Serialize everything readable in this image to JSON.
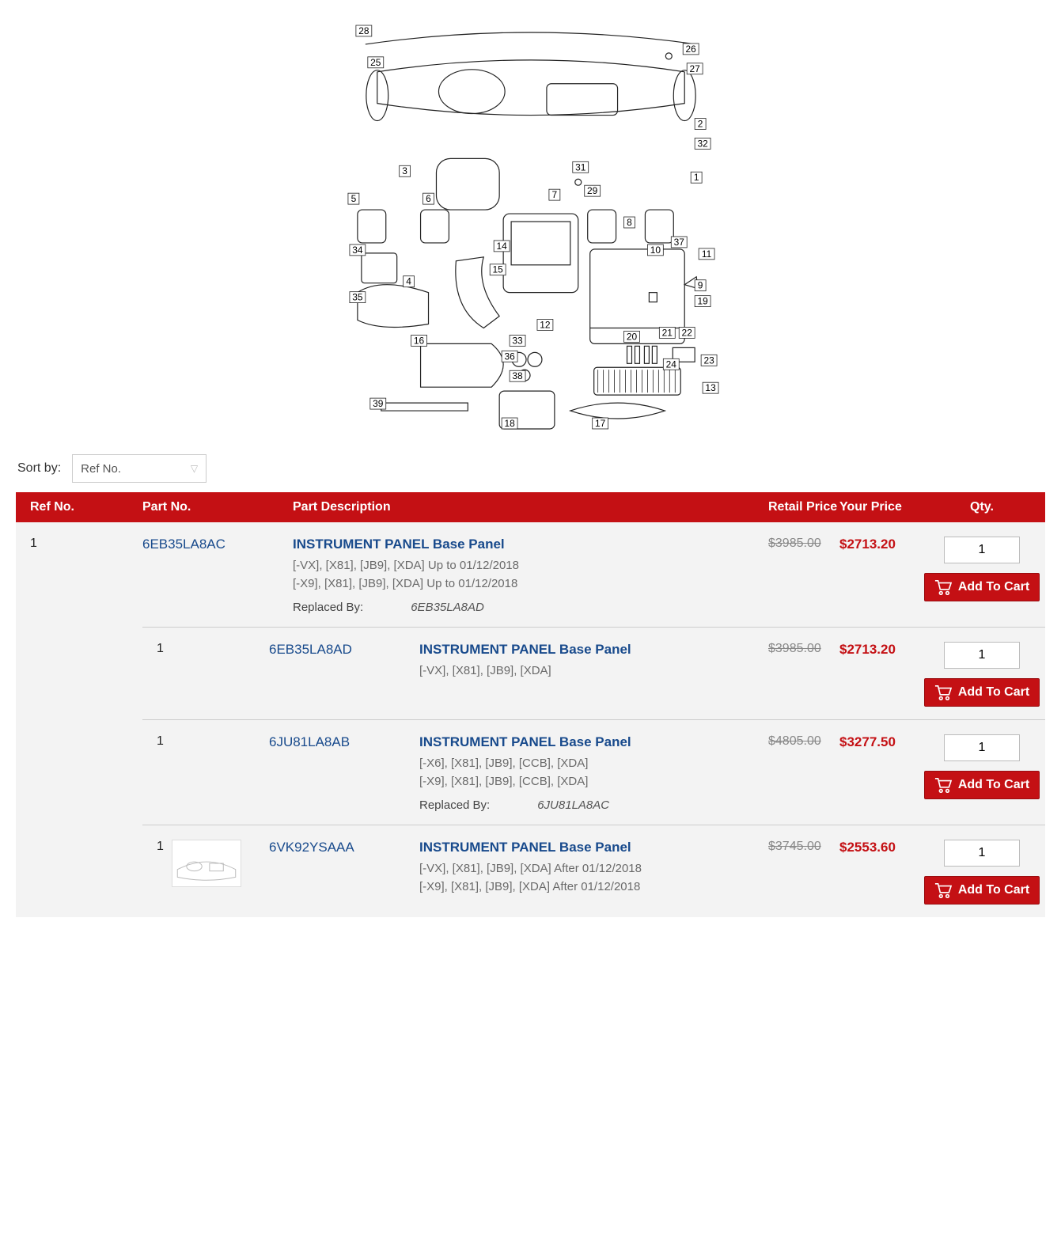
{
  "colors": {
    "header_bg": "#c41014",
    "header_text": "#ffffff",
    "link": "#184a8c",
    "price_highlight": "#c41014",
    "muted": "#888888",
    "row_bg": "#f3f3f3"
  },
  "sort": {
    "label": "Sort by:",
    "selected": "Ref No."
  },
  "table": {
    "headers": {
      "ref": "Ref No.",
      "partno": "Part No.",
      "desc": "Part Description",
      "retail": "Retail Price",
      "your": "Your Price",
      "qty": "Qty."
    }
  },
  "addToCartLabel": "Add To Cart",
  "replacedByLabel": "Replaced By:",
  "parts": [
    {
      "ref": "1",
      "partNo": "6EB35LA8AC",
      "title": "INSTRUMENT PANEL Base Panel",
      "line1": "[-VX], [X81], [JB9], [XDA] Up to 01/12/2018",
      "line2": "[-X9], [X81], [JB9], [XDA] Up to 01/12/2018",
      "replacedBy": "6EB35LA8AD",
      "retail": "$3985.00",
      "your": "$2713.20",
      "qty": "1",
      "thumb": false
    },
    {
      "ref": "1",
      "partNo": "6EB35LA8AD",
      "title": "INSTRUMENT PANEL Base Panel",
      "line1": "[-VX], [X81], [JB9], [XDA]",
      "line2": "",
      "replacedBy": "",
      "retail": "$3985.00",
      "your": "$2713.20",
      "qty": "1",
      "thumb": false
    },
    {
      "ref": "1",
      "partNo": "6JU81LA8AB",
      "title": "INSTRUMENT PANEL Base Panel",
      "line1": "[-X6], [X81], [JB9], [CCB], [XDA]",
      "line2": "[-X9], [X81], [JB9], [CCB], [XDA]",
      "replacedBy": "6JU81LA8AC",
      "retail": "$4805.00",
      "your": "$3277.50",
      "qty": "1",
      "thumb": false
    },
    {
      "ref": "1",
      "partNo": "6VK92YSAAA",
      "title": "INSTRUMENT PANEL Base Panel",
      "line1": "[-VX], [X81], [JB9], [XDA] After 01/12/2018",
      "line2": "[-X9], [X81], [JB9], [XDA] After 01/12/2018",
      "replacedBy": "",
      "retail": "$3745.00",
      "your": "$2553.60",
      "qty": "1",
      "thumb": true
    }
  ],
  "diagram": {
    "callouts": [
      "1",
      "2",
      "3",
      "4",
      "5",
      "6",
      "7",
      "8",
      "9",
      "10",
      "11",
      "12",
      "13",
      "14",
      "15",
      "16",
      "17",
      "18",
      "19",
      "20",
      "21",
      "22",
      "23",
      "24",
      "25",
      "26",
      "27",
      "28",
      "29",
      "31",
      "32",
      "33",
      "34",
      "35",
      "36",
      "37",
      "38",
      "39"
    ]
  }
}
